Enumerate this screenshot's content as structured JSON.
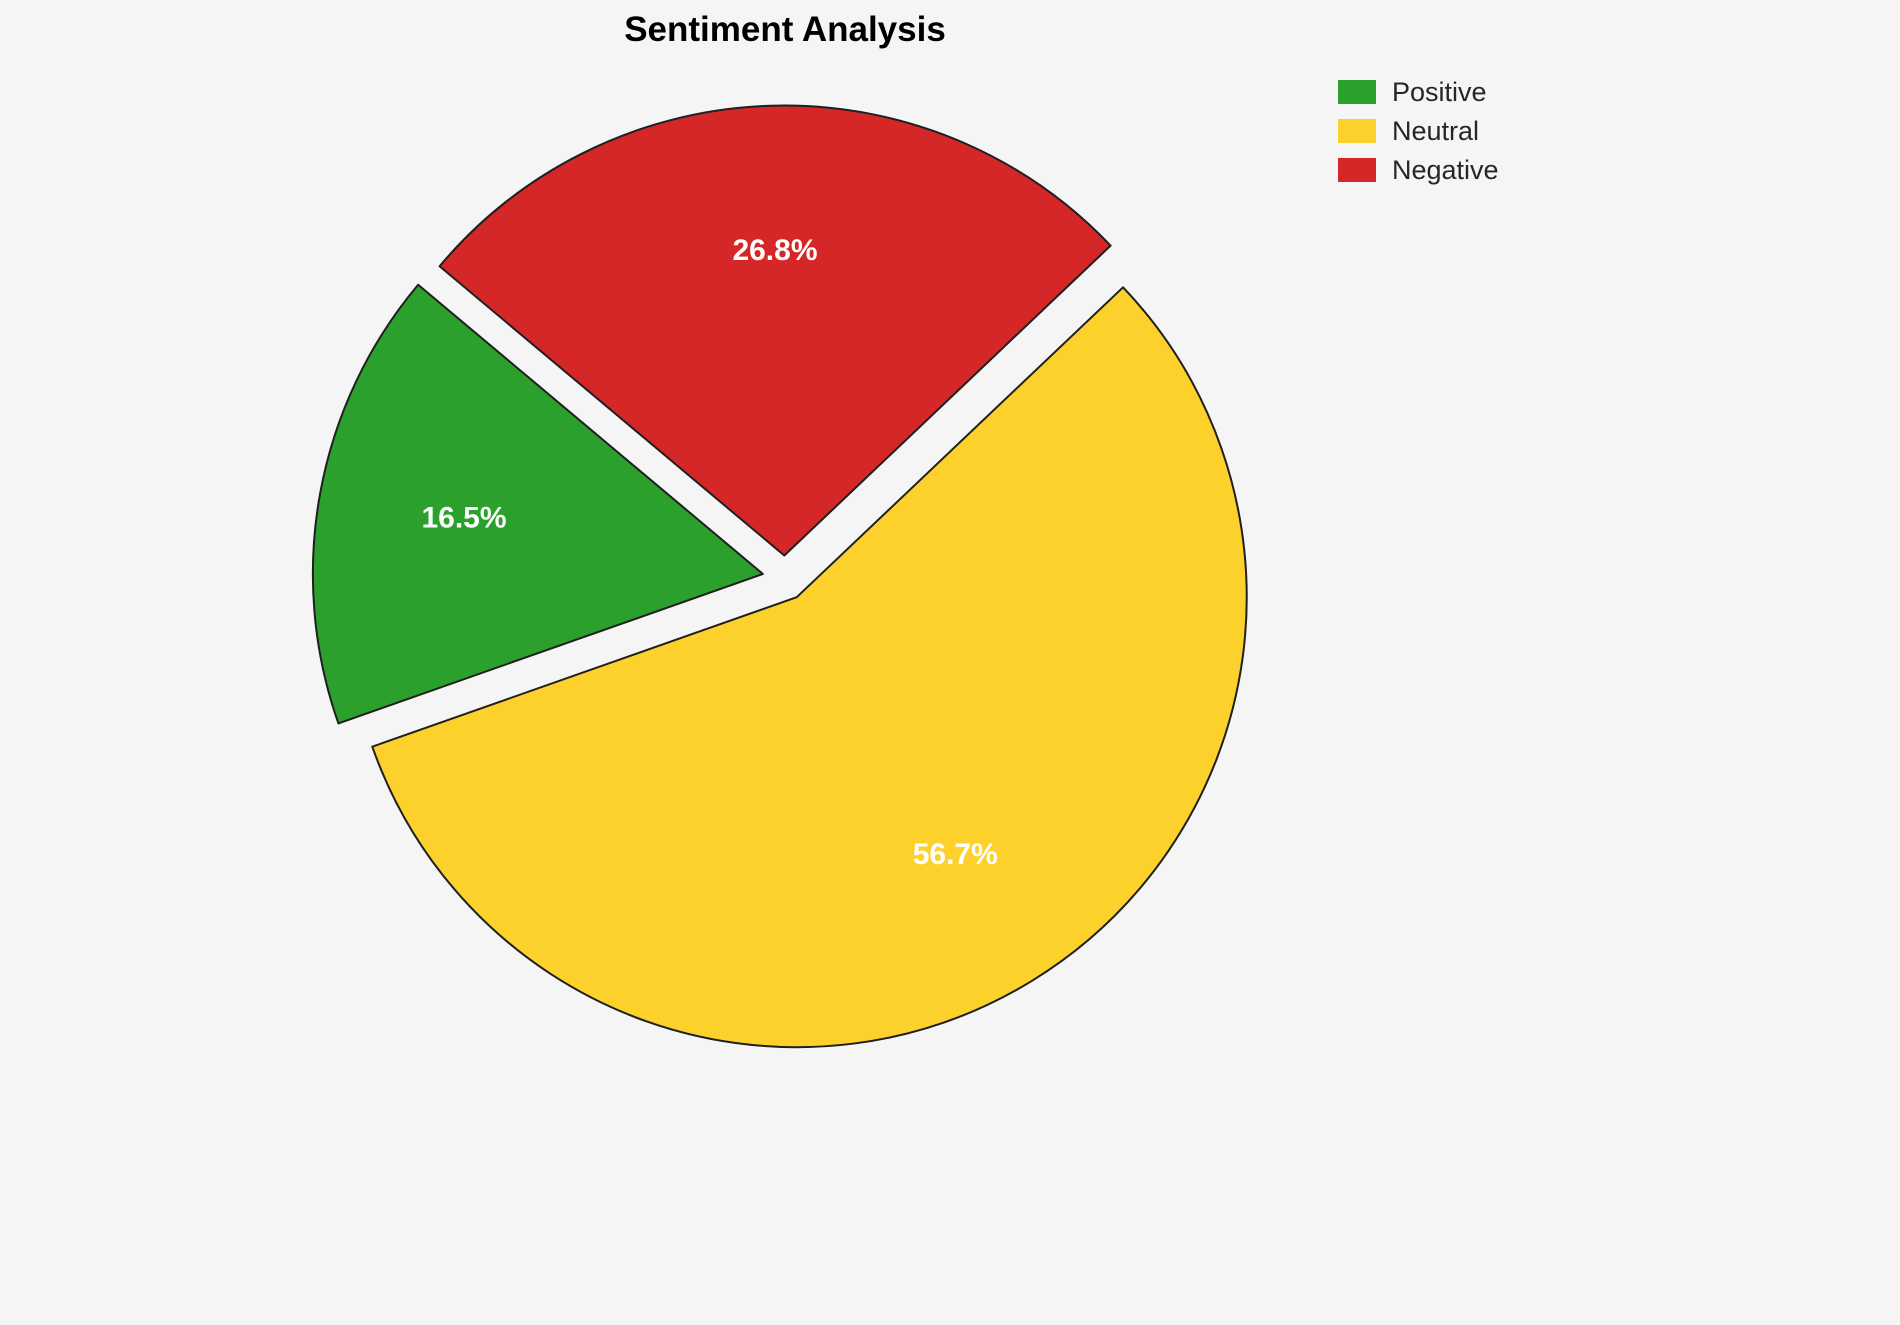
{
  "chart_data": {
    "type": "pie",
    "title": "Sentiment Analysis",
    "slices": [
      {
        "label": "Positive",
        "value": 16.5,
        "display": "16.5%",
        "color": "#2ca02c"
      },
      {
        "label": "Neutral",
        "value": 56.7,
        "display": "56.7%",
        "color": "#fcd12b"
      },
      {
        "label": "Negative",
        "value": 26.8,
        "display": "26.8%",
        "color": "#d62728"
      }
    ],
    "start_angle": 140,
    "direction": "counterclockwise",
    "explode": 0.05,
    "label_distance": 0.675,
    "edge_color": "#1f1f1f",
    "legend_position": "top-right",
    "background": "#f5f5f5"
  }
}
